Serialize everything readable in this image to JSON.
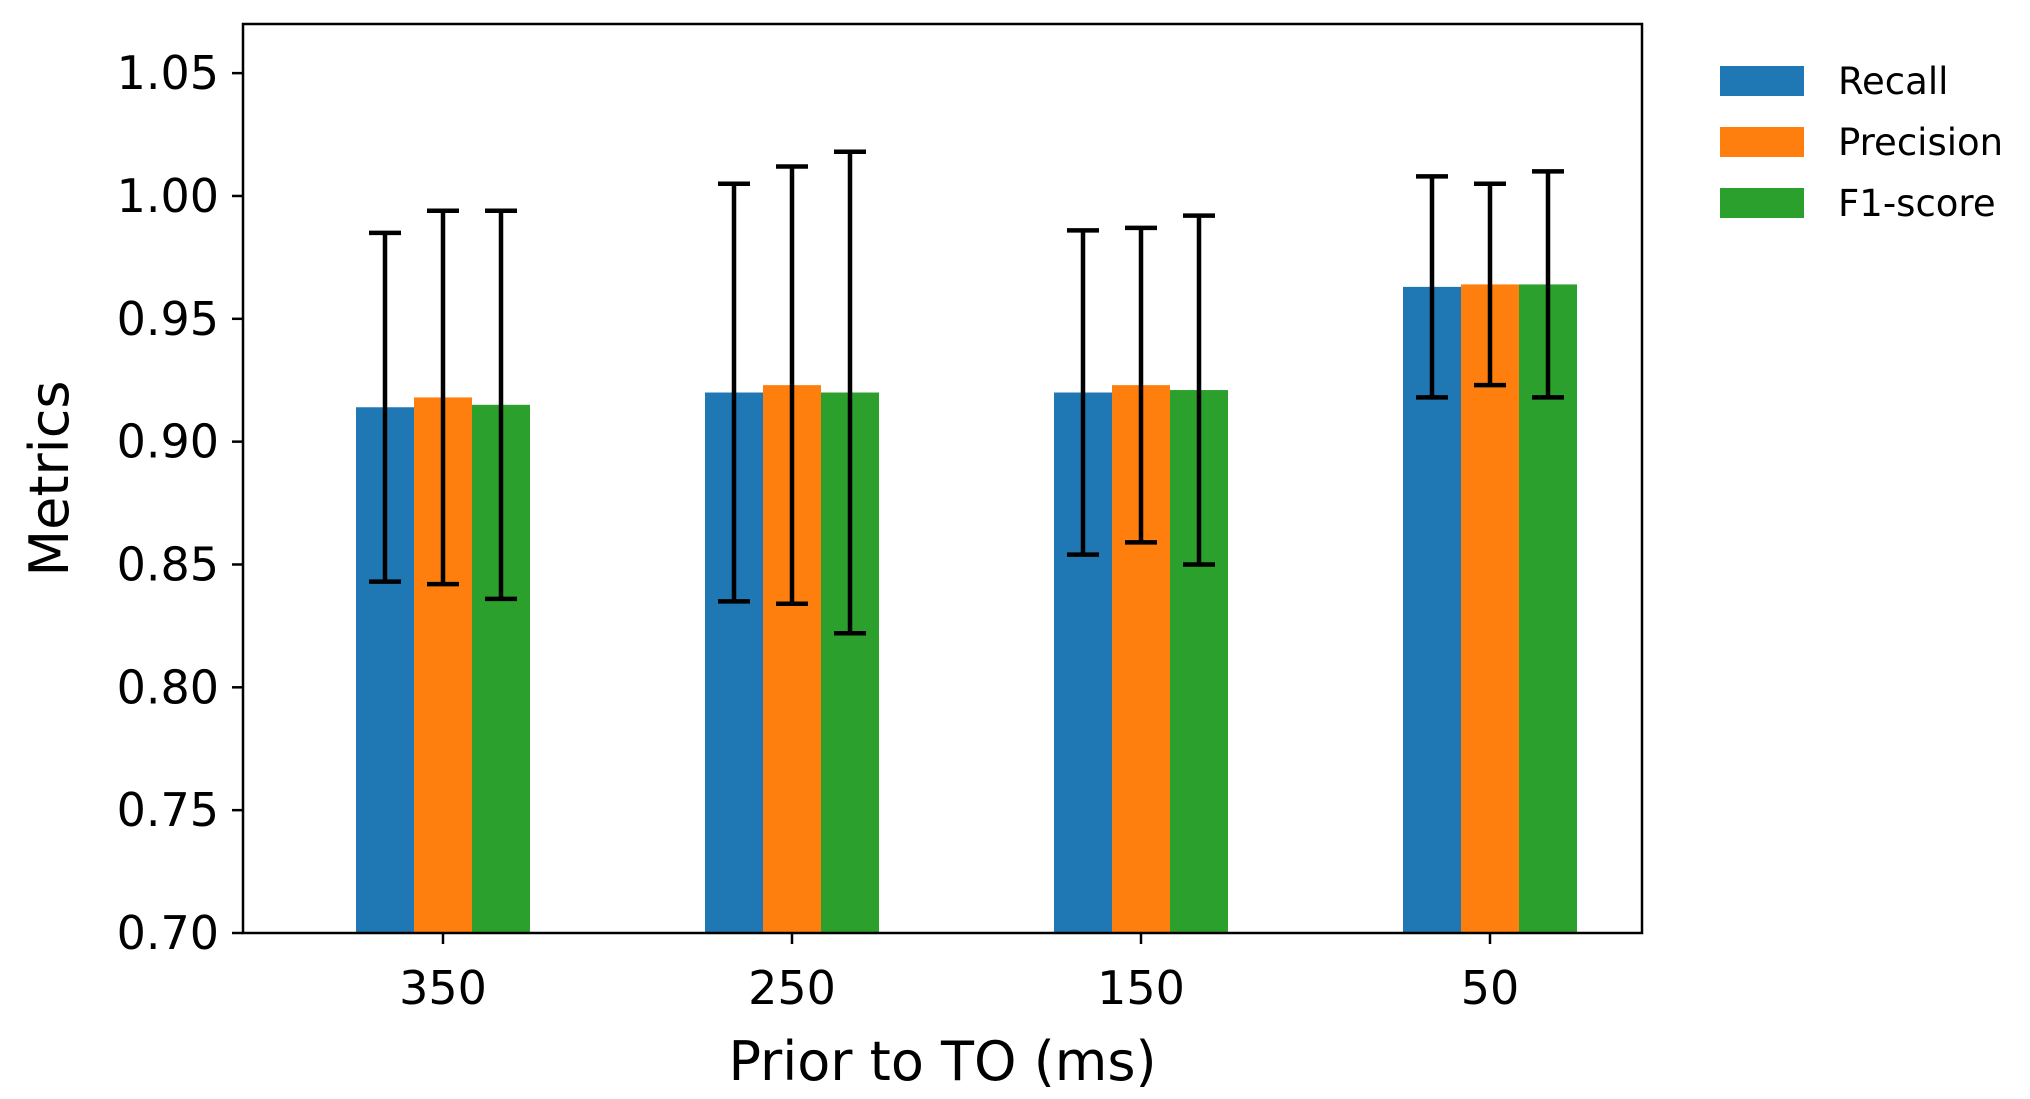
{
  "chart_data": {
    "type": "bar",
    "title": "",
    "xlabel": "Prior to TO (ms)",
    "ylabel": "Metrics",
    "categories": [
      "350",
      "250",
      "150",
      "50"
    ],
    "ylim": [
      0.7,
      1.07
    ],
    "yticks": [
      "0.70",
      "0.75",
      "0.80",
      "0.85",
      "0.90",
      "0.95",
      "1.00",
      "1.05"
    ],
    "grid": false,
    "legend_position": "outside-top-right",
    "error_bars": true,
    "series": [
      {
        "name": "Recall",
        "color": "#1f77b4",
        "values": [
          0.914,
          0.92,
          0.92,
          0.963
        ],
        "errors": [
          0.071,
          0.085,
          0.066,
          0.045
        ]
      },
      {
        "name": "Precision",
        "color": "#ff7f0e",
        "values": [
          0.918,
          0.923,
          0.923,
          0.964
        ],
        "errors": [
          0.076,
          0.089,
          0.064,
          0.041
        ]
      },
      {
        "name": "F1-score",
        "color": "#2ca02c",
        "values": [
          0.915,
          0.92,
          0.921,
          0.964
        ],
        "errors": [
          0.079,
          0.098,
          0.071,
          0.046
        ]
      }
    ]
  }
}
